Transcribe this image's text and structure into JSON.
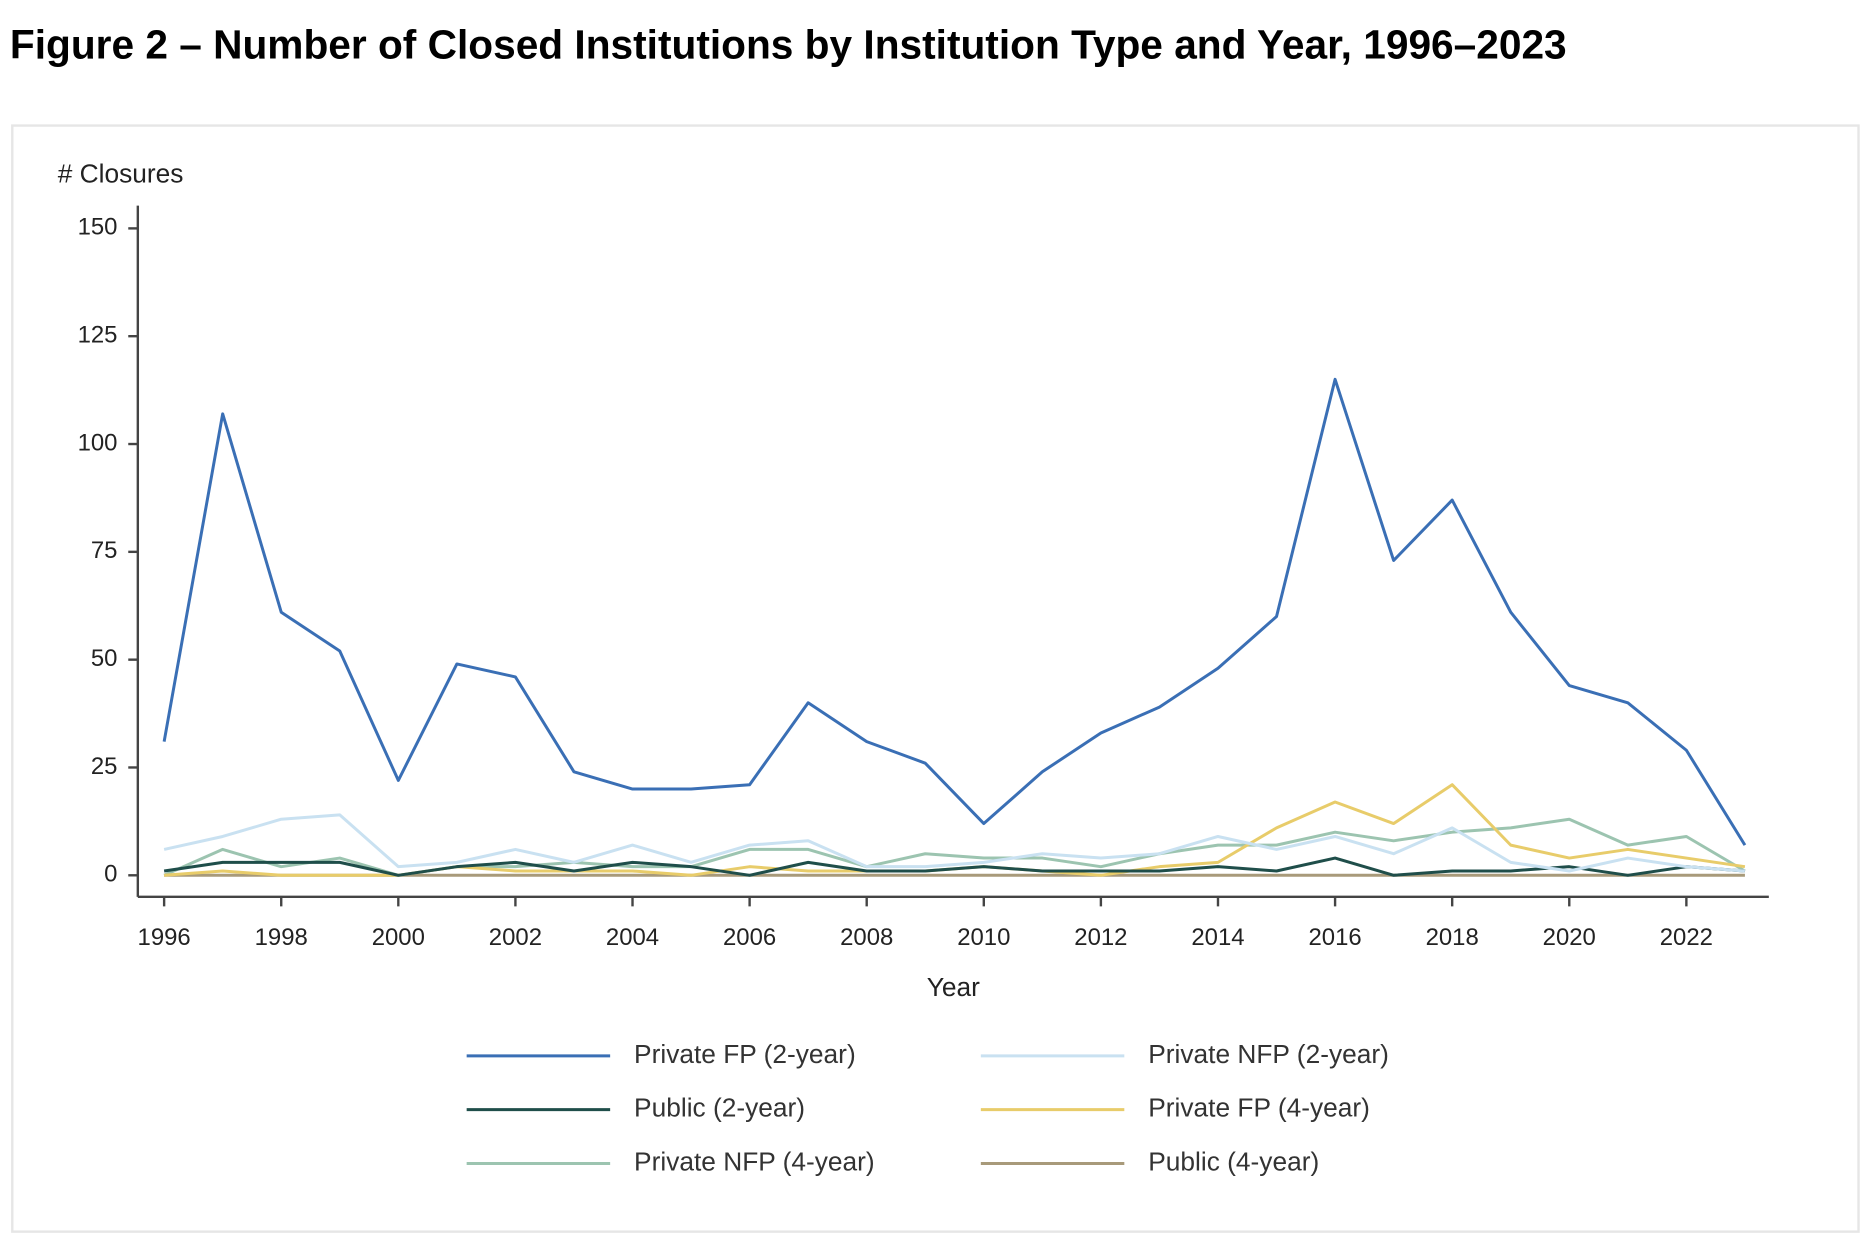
{
  "chart_data": {
    "type": "line",
    "title": "Figure 2 – Number of Closed Institutions by Institution Type and Year, 1996–2023",
    "y_label": "# Closures",
    "x_label": "Year",
    "x": [
      1996,
      1997,
      1998,
      1999,
      2000,
      2001,
      2002,
      2003,
      2004,
      2005,
      2006,
      2007,
      2008,
      2009,
      2010,
      2011,
      2012,
      2013,
      2014,
      2015,
      2016,
      2017,
      2018,
      2019,
      2020,
      2021,
      2022,
      2023
    ],
    "xlim": [
      1996,
      2023
    ],
    "xticks": [
      1996,
      1998,
      2000,
      2002,
      2004,
      2006,
      2008,
      2010,
      2012,
      2014,
      2016,
      2018,
      2020,
      2022
    ],
    "ylim": [
      0,
      150
    ],
    "yticks": [
      0,
      25,
      50,
      75,
      100,
      125,
      150
    ],
    "series": [
      {
        "name": "Private FP (2-year)",
        "color": "#3a6fb5",
        "values": [
          31,
          107,
          61,
          52,
          22,
          49,
          46,
          24,
          20,
          20,
          21,
          40,
          31,
          26,
          12,
          24,
          33,
          39,
          48,
          60,
          115,
          73,
          87,
          61,
          44,
          40,
          29,
          7
        ]
      },
      {
        "name": "Private NFP (2-year)",
        "color": "#c9e1f1",
        "values": [
          6,
          9,
          13,
          14,
          2,
          3,
          6,
          3,
          7,
          3,
          7,
          8,
          2,
          2,
          3,
          5,
          4,
          5,
          9,
          6,
          9,
          5,
          11,
          3,
          1,
          4,
          2,
          1
        ]
      },
      {
        "name": "Public (2-year)",
        "color": "#1f4e4a",
        "values": [
          1,
          3,
          3,
          3,
          0,
          2,
          3,
          1,
          3,
          2,
          0,
          3,
          1,
          1,
          2,
          1,
          1,
          1,
          2,
          1,
          4,
          0,
          1,
          1,
          2,
          0,
          2,
          1
        ]
      },
      {
        "name": "Private FP (4-year)",
        "color": "#e8cc6a",
        "values": [
          0,
          1,
          0,
          0,
          0,
          2,
          1,
          1,
          1,
          0,
          2,
          1,
          1,
          1,
          2,
          1,
          0,
          2,
          3,
          11,
          17,
          12,
          21,
          7,
          4,
          6,
          4,
          2
        ]
      },
      {
        "name": "Private NFP (4-year)",
        "color": "#9cc4b0",
        "values": [
          0,
          6,
          2,
          4,
          0,
          2,
          2,
          3,
          2,
          2,
          6,
          6,
          2,
          5,
          4,
          4,
          2,
          5,
          7,
          7,
          10,
          8,
          10,
          11,
          13,
          7,
          9,
          1
        ]
      },
      {
        "name": "Public (4-year)",
        "color": "#a89a7a",
        "values": [
          0,
          0,
          0,
          0,
          0,
          0,
          0,
          0,
          0,
          0,
          0,
          0,
          0,
          0,
          0,
          0,
          0,
          0,
          0,
          0,
          0,
          0,
          0,
          0,
          0,
          0,
          0,
          0
        ]
      }
    ]
  }
}
